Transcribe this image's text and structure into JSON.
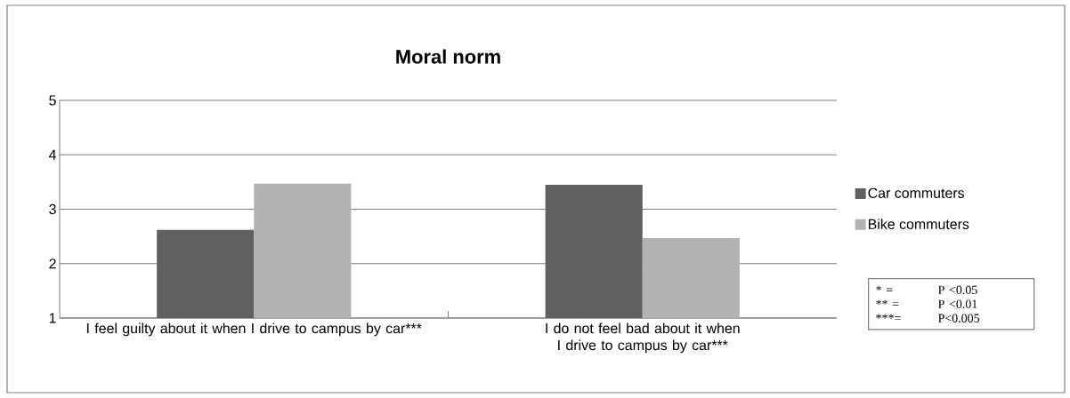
{
  "chart_data": {
    "type": "bar",
    "title": "Moral norm",
    "categories": [
      "I feel guilty about it when I drive to campus by car***",
      "I do not feel bad about it when I drive to campus by car***"
    ],
    "series": [
      {
        "name": "Car commuters",
        "color": "#606060",
        "values": [
          2.62,
          3.45
        ]
      },
      {
        "name": "Bike commuters",
        "color": "#b2b2b2",
        "values": [
          3.47,
          2.47
        ]
      }
    ],
    "ylim": [
      1,
      5
    ],
    "yticks": [
      1,
      2,
      3,
      4,
      5
    ],
    "grid": "y",
    "legend": "right",
    "annotations": [
      "* =",
      "P <0.05",
      "** =",
      "P <0.01",
      "***=",
      "P<0.005"
    ]
  }
}
